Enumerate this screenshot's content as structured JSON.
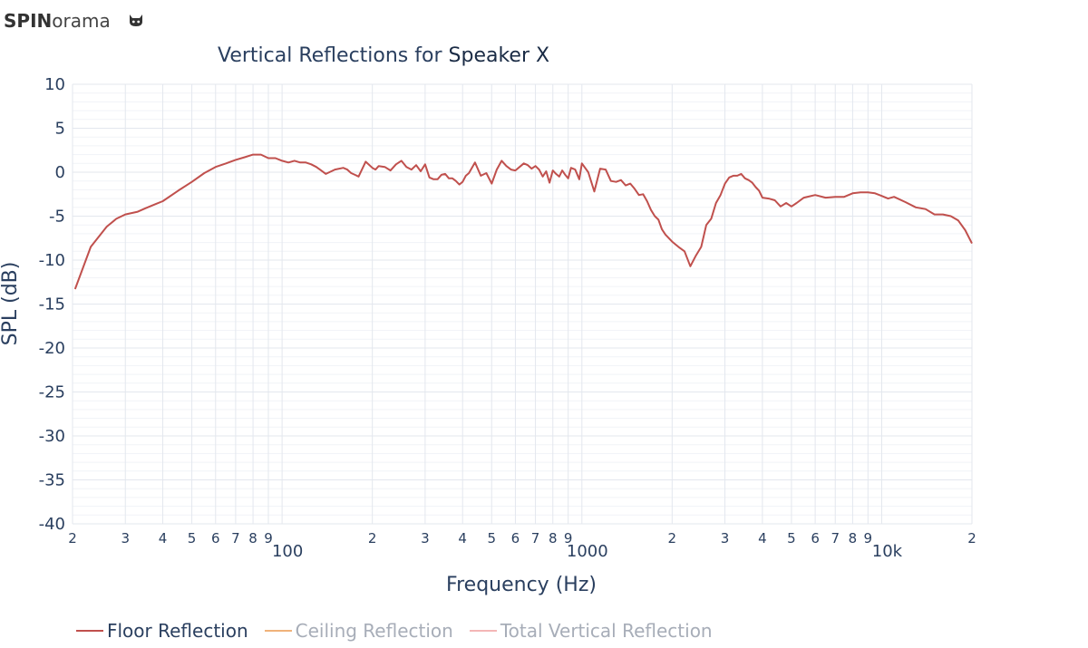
{
  "brand": {
    "bold": "SPIN",
    "light": "orama",
    "icon": "github-icon"
  },
  "chart_data": {
    "type": "line",
    "title_prefix": "Vertical Reflections for ",
    "title_speaker": "Speaker X",
    "xlabel": "Frequency (Hz)",
    "ylabel": "SPL (dB)",
    "xscale": "log",
    "xlim": [
      20,
      20000
    ],
    "ylim": [
      -40,
      10
    ],
    "y_ticks": [
      "10",
      "5",
      "0",
      "-5",
      "-10",
      "-15",
      "-20",
      "-25",
      "-30",
      "-35",
      "-40"
    ],
    "x_ticks": [
      {
        "v": 20,
        "label": "2"
      },
      {
        "v": 30,
        "label": "3"
      },
      {
        "v": 40,
        "label": "4"
      },
      {
        "v": 50,
        "label": "5"
      },
      {
        "v": 60,
        "label": "6"
      },
      {
        "v": 70,
        "label": "7"
      },
      {
        "v": 80,
        "label": "8"
      },
      {
        "v": 90,
        "label": "9"
      },
      {
        "v": 100,
        "label": "100",
        "major": true
      },
      {
        "v": 200,
        "label": "2"
      },
      {
        "v": 300,
        "label": "3"
      },
      {
        "v": 400,
        "label": "4"
      },
      {
        "v": 500,
        "label": "5"
      },
      {
        "v": 600,
        "label": "6"
      },
      {
        "v": 700,
        "label": "7"
      },
      {
        "v": 800,
        "label": "8"
      },
      {
        "v": 900,
        "label": "9"
      },
      {
        "v": 1000,
        "label": "1000",
        "major": true
      },
      {
        "v": 2000,
        "label": "2"
      },
      {
        "v": 3000,
        "label": "3"
      },
      {
        "v": 4000,
        "label": "4"
      },
      {
        "v": 5000,
        "label": "5"
      },
      {
        "v": 6000,
        "label": "6"
      },
      {
        "v": 7000,
        "label": "7"
      },
      {
        "v": 8000,
        "label": "8"
      },
      {
        "v": 9000,
        "label": "9"
      },
      {
        "v": 10000,
        "label": "10k",
        "major": true
      },
      {
        "v": 20000,
        "label": "2"
      }
    ],
    "grid": true,
    "legend_position": "bottom",
    "series": [
      {
        "name": "Floor Reflection",
        "color": "#c0504d",
        "visible": true,
        "x": [
          20.4,
          23,
          26,
          28,
          30,
          33,
          35,
          38,
          40,
          45,
          50,
          55,
          60,
          65,
          70,
          75,
          80,
          85,
          90,
          95,
          100,
          105,
          110,
          115,
          120,
          125,
          130,
          135,
          140,
          150,
          160,
          165,
          170,
          175,
          180,
          190,
          200,
          205,
          210,
          220,
          230,
          240,
          250,
          260,
          270,
          280,
          290,
          300,
          310,
          320,
          330,
          340,
          350,
          360,
          370,
          380,
          390,
          400,
          410,
          420,
          440,
          460,
          480,
          500,
          520,
          540,
          560,
          580,
          600,
          620,
          640,
          660,
          680,
          700,
          720,
          740,
          760,
          780,
          800,
          820,
          840,
          860,
          880,
          900,
          920,
          950,
          980,
          1000,
          1050,
          1100,
          1150,
          1200,
          1250,
          1300,
          1350,
          1400,
          1450,
          1500,
          1550,
          1600,
          1650,
          1700,
          1750,
          1800,
          1850,
          1900,
          2000,
          2100,
          2200,
          2300,
          2400,
          2500,
          2600,
          2700,
          2800,
          2900,
          3000,
          3100,
          3200,
          3300,
          3400,
          3500,
          3600,
          3700,
          3800,
          3900,
          4000,
          4200,
          4400,
          4600,
          4800,
          5000,
          5200,
          5500,
          6000,
          6500,
          7000,
          7500,
          8000,
          8500,
          9000,
          9500,
          10000,
          10500,
          11000,
          12000,
          13000,
          14000,
          15000,
          16000,
          17000,
          18000,
          19000,
          20000
        ],
        "y": [
          -13.3,
          -8.5,
          -6.2,
          -5.3,
          -4.8,
          -4.5,
          -4.1,
          -3.6,
          -3.3,
          -2.1,
          -1.1,
          -0.1,
          0.6,
          1.0,
          1.4,
          1.7,
          2.0,
          2.0,
          1.6,
          1.6,
          1.3,
          1.1,
          1.3,
          1.1,
          1.1,
          0.9,
          0.6,
          0.2,
          -0.2,
          0.3,
          0.5,
          0.3,
          -0.1,
          -0.3,
          -0.5,
          1.2,
          0.5,
          0.3,
          0.7,
          0.6,
          0.2,
          0.9,
          1.3,
          0.6,
          0.3,
          0.8,
          0.1,
          0.9,
          -0.6,
          -0.8,
          -0.8,
          -0.3,
          -0.2,
          -0.7,
          -0.7,
          -1.0,
          -1.4,
          -1.1,
          -0.4,
          -0.1,
          1.1,
          -0.4,
          -0.1,
          -1.3,
          0.3,
          1.3,
          0.7,
          0.3,
          0.2,
          0.6,
          1.0,
          0.8,
          0.4,
          0.7,
          0.3,
          -0.5,
          0.1,
          -1.2,
          0.2,
          -0.2,
          -0.5,
          0.2,
          -0.3,
          -0.7,
          0.5,
          0.3,
          -0.8,
          1.0,
          0.0,
          -2.2,
          0.4,
          0.3,
          -1.0,
          -1.1,
          -0.9,
          -1.5,
          -1.3,
          -1.9,
          -2.6,
          -2.5,
          -3.3,
          -4.3,
          -5.0,
          -5.4,
          -6.5,
          -7.1,
          -7.9,
          -8.5,
          -9.0,
          -10.7,
          -9.5,
          -8.5,
          -6.0,
          -5.3,
          -3.5,
          -2.6,
          -1.3,
          -0.6,
          -0.4,
          -0.4,
          -0.2,
          -0.7,
          -0.9,
          -1.2,
          -1.7,
          -2.1,
          -2.9,
          -3.0,
          -3.2,
          -3.9,
          -3.5,
          -3.9,
          -3.5,
          -2.9,
          -2.6,
          -2.9,
          -2.8,
          -2.8,
          -2.4,
          -2.3,
          -2.3,
          -2.4,
          -2.7,
          -3.0,
          -2.8,
          -3.4,
          -4.0,
          -4.2,
          -4.8,
          -4.8,
          -5.0,
          -5.5,
          -6.6,
          -8.1
        ]
      },
      {
        "name": "Ceiling Reflection",
        "color": "#f0b27a",
        "visible": false
      },
      {
        "name": "Total Vertical Reflection",
        "color": "#f4b6b6",
        "visible": false
      }
    ]
  }
}
